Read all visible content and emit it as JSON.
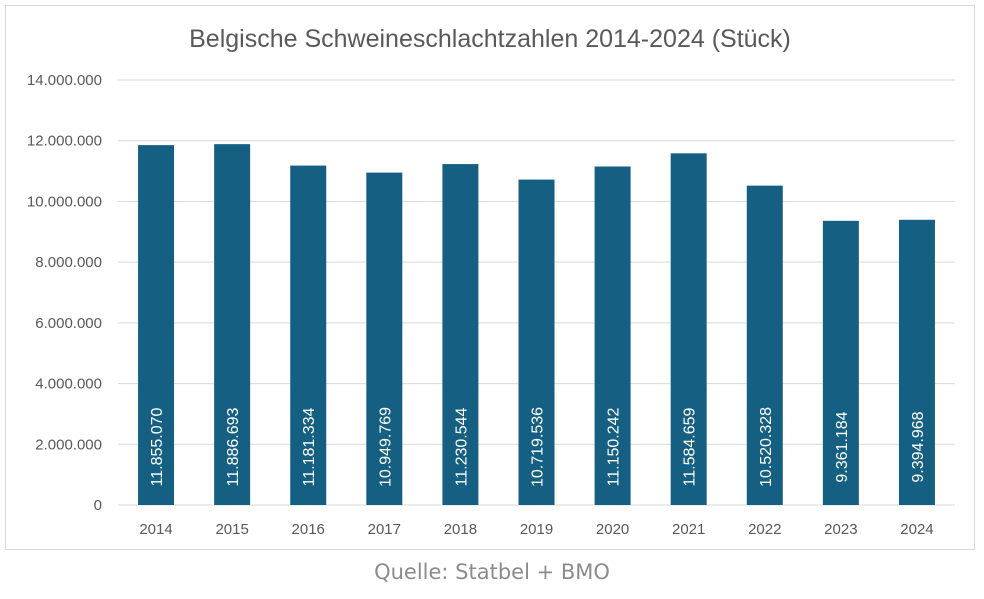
{
  "chart_data": {
    "type": "bar",
    "title": "Belgische Schweineschlachtzahlen 2014-2024 (Stück)",
    "xlabel": "",
    "ylabel": "",
    "categories": [
      "2014",
      "2015",
      "2016",
      "2017",
      "2018",
      "2019",
      "2020",
      "2021",
      "2022",
      "2023",
      "2024"
    ],
    "values": [
      11855070,
      11886693,
      11181334,
      10949769,
      11230544,
      10719536,
      11150242,
      11584659,
      10520328,
      9361184,
      9394968
    ],
    "value_labels": [
      "11.855.070",
      "11.886.693",
      "11.181.334",
      "10.949.769",
      "11.230.544",
      "10.719.536",
      "11.150.242",
      "11.584.659",
      "10.520.328",
      "9.361.184",
      "9.394.968"
    ],
    "ylim": [
      0,
      14000000
    ],
    "yticks": [
      0,
      2000000,
      4000000,
      6000000,
      8000000,
      10000000,
      12000000,
      14000000
    ],
    "ytick_labels": [
      "0",
      "2.000.000",
      "4.000.000",
      "6.000.000",
      "8.000.000",
      "10.000.000",
      "12.000.000",
      "14.000.000"
    ],
    "grid": true,
    "legend": "none",
    "colors": {
      "bar": "#156082",
      "grid": "#d9d9d9",
      "text": "#595959",
      "bar_label": "#ffffff"
    }
  },
  "caption": {
    "source": "Quelle: Statbel + BMO"
  }
}
